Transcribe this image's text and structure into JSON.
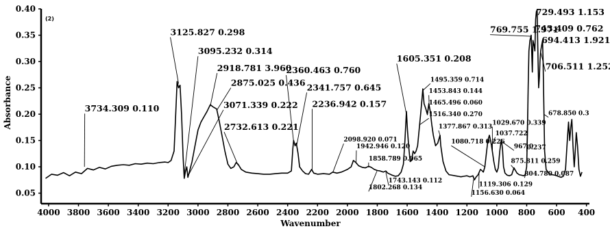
{
  "chart_data": {
    "type": "line",
    "panel_label": "(2)",
    "xlabel": "Wavenumber",
    "ylabel": "Absorbance",
    "xlim": [
      4050,
      380
    ],
    "ylim": [
      0.03,
      0.4
    ],
    "x_reversed": true,
    "xticks": [
      "4000",
      "3800",
      "3600",
      "3400",
      "3200",
      "3000",
      "2800",
      "2600",
      "2400",
      "2200",
      "2000",
      "1800",
      "1600",
      "1400",
      "1200",
      "1000",
      "800",
      "600",
      "400"
    ],
    "yticks": [
      "0.05",
      "0.10",
      "0.15",
      "0.20",
      "0.25",
      "0.30",
      "0.35",
      "0.40"
    ],
    "series": [
      {
        "color": "#000000",
        "points": [
          [
            4020,
            0.078
          ],
          [
            3980,
            0.086
          ],
          [
            3940,
            0.084
          ],
          [
            3900,
            0.089
          ],
          [
            3860,
            0.083
          ],
          [
            3820,
            0.09
          ],
          [
            3780,
            0.087
          ],
          [
            3740,
            0.097
          ],
          [
            3700,
            0.094
          ],
          [
            3660,
            0.099
          ],
          [
            3620,
            0.096
          ],
          [
            3580,
            0.101
          ],
          [
            3540,
            0.103
          ],
          [
            3500,
            0.104
          ],
          [
            3460,
            0.103
          ],
          [
            3420,
            0.106
          ],
          [
            3380,
            0.105
          ],
          [
            3340,
            0.107
          ],
          [
            3300,
            0.106
          ],
          [
            3260,
            0.108
          ],
          [
            3220,
            0.109
          ],
          [
            3200,
            0.108
          ],
          [
            3180,
            0.112
          ],
          [
            3160,
            0.13
          ],
          [
            3150,
            0.195
          ],
          [
            3140,
            0.262
          ],
          [
            3130,
            0.25
          ],
          [
            3120,
            0.255
          ],
          [
            3110,
            0.2
          ],
          [
            3100,
            0.12
          ],
          [
            3092,
            0.078
          ],
          [
            3085,
            0.09
          ],
          [
            3075,
            0.1
          ],
          [
            3068,
            0.08
          ],
          [
            3060,
            0.088
          ],
          [
            3040,
            0.11
          ],
          [
            3020,
            0.14
          ],
          [
            3000,
            0.17
          ],
          [
            2980,
            0.185
          ],
          [
            2960,
            0.195
          ],
          [
            2940,
            0.205
          ],
          [
            2918,
            0.218
          ],
          [
            2900,
            0.214
          ],
          [
            2875,
            0.21
          ],
          [
            2860,
            0.19
          ],
          [
            2840,
            0.16
          ],
          [
            2820,
            0.13
          ],
          [
            2800,
            0.105
          ],
          [
            2780,
            0.097
          ],
          [
            2760,
            0.1
          ],
          [
            2745,
            0.108
          ],
          [
            2732,
            0.105
          ],
          [
            2710,
            0.095
          ],
          [
            2680,
            0.09
          ],
          [
            2640,
            0.088
          ],
          [
            2600,
            0.087
          ],
          [
            2560,
            0.086
          ],
          [
            2520,
            0.086
          ],
          [
            2480,
            0.087
          ],
          [
            2440,
            0.088
          ],
          [
            2400,
            0.088
          ],
          [
            2375,
            0.092
          ],
          [
            2365,
            0.135
          ],
          [
            2360,
            0.15
          ],
          [
            2350,
            0.14
          ],
          [
            2342,
            0.145
          ],
          [
            2330,
            0.125
          ],
          [
            2320,
            0.1
          ],
          [
            2300,
            0.092
          ],
          [
            2280,
            0.087
          ],
          [
            2260,
            0.086
          ],
          [
            2240,
            0.095
          ],
          [
            2225,
            0.088
          ],
          [
            2200,
            0.086
          ],
          [
            2160,
            0.087
          ],
          [
            2120,
            0.086
          ],
          [
            2098,
            0.09
          ],
          [
            2070,
            0.088
          ],
          [
            2040,
            0.09
          ],
          [
            2000,
            0.095
          ],
          [
            1975,
            0.1
          ],
          [
            1960,
            0.112
          ],
          [
            1943,
            0.108
          ],
          [
            1925,
            0.102
          ],
          [
            1900,
            0.099
          ],
          [
            1880,
            0.098
          ],
          [
            1858,
            0.101
          ],
          [
            1840,
            0.099
          ],
          [
            1820,
            0.095
          ],
          [
            1800,
            0.093
          ],
          [
            1780,
            0.092
          ],
          [
            1760,
            0.09
          ],
          [
            1743,
            0.092
          ],
          [
            1730,
            0.088
          ],
          [
            1700,
            0.084
          ],
          [
            1680,
            0.082
          ],
          [
            1660,
            0.083
          ],
          [
            1640,
            0.09
          ],
          [
            1625,
            0.105
          ],
          [
            1615,
            0.15
          ],
          [
            1605,
            0.205
          ],
          [
            1598,
            0.17
          ],
          [
            1590,
            0.14
          ],
          [
            1580,
            0.11
          ],
          [
            1570,
            0.112
          ],
          [
            1560,
            0.13
          ],
          [
            1550,
            0.125
          ],
          [
            1540,
            0.13
          ],
          [
            1530,
            0.14
          ],
          [
            1520,
            0.17
          ],
          [
            1510,
            0.2
          ],
          [
            1500,
            0.232
          ],
          [
            1495,
            0.248
          ],
          [
            1487,
            0.22
          ],
          [
            1475,
            0.21
          ],
          [
            1465,
            0.2
          ],
          [
            1455,
            0.22
          ],
          [
            1445,
            0.205
          ],
          [
            1435,
            0.18
          ],
          [
            1425,
            0.16
          ],
          [
            1410,
            0.14
          ],
          [
            1395,
            0.145
          ],
          [
            1380,
            0.16
          ],
          [
            1375,
            0.14
          ],
          [
            1360,
            0.11
          ],
          [
            1340,
            0.092
          ],
          [
            1320,
            0.085
          ],
          [
            1300,
            0.084
          ],
          [
            1280,
            0.083
          ],
          [
            1260,
            0.082
          ],
          [
            1240,
            0.081
          ],
          [
            1220,
            0.082
          ],
          [
            1200,
            0.083
          ],
          [
            1180,
            0.081
          ],
          [
            1160,
            0.083
          ],
          [
            1150,
            0.075
          ],
          [
            1140,
            0.08
          ],
          [
            1125,
            0.085
          ],
          [
            1110,
            0.095
          ],
          [
            1100,
            0.093
          ],
          [
            1090,
            0.09
          ],
          [
            1080,
            0.1
          ],
          [
            1070,
            0.125
          ],
          [
            1060,
            0.15
          ],
          [
            1050,
            0.16
          ],
          [
            1040,
            0.148
          ],
          [
            1030,
            0.13
          ],
          [
            1020,
            0.11
          ],
          [
            1010,
            0.095
          ],
          [
            1000,
            0.09
          ],
          [
            990,
            0.098
          ],
          [
            980,
            0.13
          ],
          [
            970,
            0.152
          ],
          [
            962,
            0.135
          ],
          [
            955,
            0.1
          ],
          [
            945,
            0.088
          ],
          [
            930,
            0.084
          ],
          [
            915,
            0.083
          ],
          [
            900,
            0.085
          ],
          [
            885,
            0.098
          ],
          [
            875,
            0.093
          ],
          [
            865,
            0.088
          ],
          [
            850,
            0.085
          ],
          [
            835,
            0.084
          ],
          [
            820,
            0.083
          ],
          [
            810,
            0.085
          ],
          [
            800,
            0.1
          ],
          [
            795,
            0.16
          ],
          [
            790,
            0.25
          ],
          [
            785,
            0.32
          ],
          [
            778,
            0.34
          ],
          [
            770,
            0.35
          ],
          [
            762,
            0.28
          ],
          [
            758,
            0.34
          ],
          [
            750,
            0.33
          ],
          [
            745,
            0.32
          ],
          [
            740,
            0.38
          ],
          [
            735,
            0.395
          ],
          [
            730,
            0.398
          ],
          [
            726,
            0.33
          ],
          [
            720,
            0.25
          ],
          [
            715,
            0.27
          ],
          [
            711,
            0.3
          ],
          [
            706,
            0.32
          ],
          [
            700,
            0.33
          ],
          [
            694,
            0.34
          ],
          [
            690,
            0.3
          ],
          [
            684,
            0.2
          ],
          [
            680,
            0.13
          ],
          [
            670,
            0.095
          ],
          [
            650,
            0.087
          ],
          [
            630,
            0.085
          ],
          [
            610,
            0.084
          ],
          [
            590,
            0.082
          ],
          [
            570,
            0.08
          ],
          [
            555,
            0.082
          ],
          [
            540,
            0.095
          ],
          [
            528,
            0.15
          ],
          [
            520,
            0.185
          ],
          [
            512,
            0.15
          ],
          [
            505,
            0.175
          ],
          [
            498,
            0.19
          ],
          [
            490,
            0.14
          ],
          [
            482,
            0.1
          ],
          [
            475,
            0.13
          ],
          [
            468,
            0.165
          ],
          [
            460,
            0.14
          ],
          [
            450,
            0.095
          ],
          [
            440,
            0.082
          ],
          [
            430,
            0.09
          ]
        ]
      }
    ],
    "annotations": [
      {
        "text": "3734.309  0.110",
        "size": "big",
        "x": 3760,
        "y": 0.1,
        "tx": 3758,
        "ty": 0.205
      },
      {
        "text": "3125.827  0.298",
        "size": "big",
        "x": 3130,
        "y": 0.258,
        "tx": 3185,
        "ty": 0.35
      },
      {
        "text": "3095.232  0.314",
        "size": "big",
        "x": 3094,
        "y": 0.08,
        "tx": 3000,
        "ty": 0.314
      },
      {
        "text": "2918.781  3.960",
        "size": "big",
        "x": 2918,
        "y": 0.215,
        "tx": 2872,
        "ty": 0.282
      },
      {
        "text": "2875.025  0.436",
        "size": "big",
        "x": 2875,
        "y": 0.207,
        "tx": 2780,
        "ty": 0.254
      },
      {
        "text": "3071.339  0.222",
        "size": "big",
        "x": 3068,
        "y": 0.082,
        "tx": 2830,
        "ty": 0.212
      },
      {
        "text": "2732.613  0.221",
        "size": "big",
        "x": 2732,
        "y": 0.103,
        "tx": 2825,
        "ty": 0.17
      },
      {
        "text": "2360.463  0.760",
        "size": "big",
        "x": 2360,
        "y": 0.148,
        "tx": 2410,
        "ty": 0.278
      },
      {
        "text": "2341.757  0.645",
        "size": "big",
        "x": 2340,
        "y": 0.14,
        "tx": 2272,
        "ty": 0.245
      },
      {
        "text": "2236.942  0.157",
        "size": "big",
        "x": 2236,
        "y": 0.093,
        "tx": 2236,
        "ty": 0.214
      },
      {
        "text": "2098.920  0.071",
        "size": "small",
        "x": 2098,
        "y": 0.089,
        "tx": 2025,
        "ty": 0.148
      },
      {
        "text": "1942.946  0.120",
        "size": "small",
        "x": 1942,
        "y": 0.106,
        "tx": 1940,
        "ty": 0.135
      },
      {
        "text": "1858.789  0.065",
        "size": "small",
        "x": 1858,
        "y": 0.099,
        "tx": 1858,
        "ty": 0.112
      },
      {
        "text": "1802.268  0.134",
        "size": "small",
        "x": 1802,
        "y": 0.092,
        "tx": 1858,
        "ty": 0.057
      },
      {
        "text": "1743.143  0.112",
        "size": "small",
        "x": 1743,
        "y": 0.09,
        "tx": 1725,
        "ty": 0.07
      },
      {
        "text": "1605.351  0.208",
        "size": "big",
        "x": 1605,
        "y": 0.2,
        "tx": 1670,
        "ty": 0.3
      },
      {
        "text": "1495.359  0.714",
        "size": "small",
        "x": 1495,
        "y": 0.245,
        "tx": 1445,
        "ty": 0.262
      },
      {
        "text": "1453.843  0.144",
        "size": "small",
        "x": 1453,
        "y": 0.218,
        "tx": 1455,
        "ty": 0.24
      },
      {
        "text": "1465.496  0.060",
        "size": "small",
        "x": 1465,
        "y": 0.198,
        "tx": 1455,
        "ty": 0.218
      },
      {
        "text": "1516.340  0.270",
        "size": "small",
        "x": 1516,
        "y": 0.18,
        "tx": 1455,
        "ty": 0.196
      },
      {
        "text": "1377.867  0.313",
        "size": "small",
        "x": 1378,
        "y": 0.158,
        "tx": 1390,
        "ty": 0.173
      },
      {
        "text": "1080.718  0.226",
        "size": "small",
        "x": 1080,
        "y": 0.1,
        "tx": 1305,
        "ty": 0.144
      },
      {
        "text": "1029.670  0.339",
        "size": "small",
        "x": 1029,
        "y": 0.13,
        "tx": 1030,
        "ty": 0.18
      },
      {
        "text": "1037.722",
        "size": "small",
        "x": 1037,
        "y": 0.14,
        "tx": 1010,
        "ty": 0.16
      },
      {
        "text": "967.0",
        "size": "small",
        "x": 967,
        "y": 0.148,
        "tx": 885,
        "ty": 0.135
      },
      {
        "text": "0.237",
        "size": "small",
        "x": 790,
        "y": 0.25,
        "tx": 800,
        "ty": 0.133
      },
      {
        "text": "875.811  0.259",
        "size": "small",
        "x": 875,
        "y": 0.093,
        "tx": 905,
        "ty": 0.107
      },
      {
        "text": "804.780  0.087",
        "size": "small",
        "x": 804,
        "y": 0.088,
        "tx": 815,
        "ty": 0.083
      },
      {
        "text": "1119.306  0.129",
        "size": "small",
        "x": 1119,
        "y": 0.09,
        "tx": 1120,
        "ty": 0.063
      },
      {
        "text": "1156.630  0.064",
        "size": "small",
        "x": 1156,
        "y": 0.076,
        "tx": 1170,
        "ty": 0.047
      },
      {
        "text": "769.755  1.971",
        "size": "big",
        "x": 770,
        "y": 0.348,
        "tx": 1045,
        "ty": 0.355
      },
      {
        "text": "729.493  1.153",
        "size": "big",
        "x": 730,
        "y": 0.396,
        "tx": 738,
        "ty": 0.388
      },
      {
        "text": "743.409  0.762",
        "size": "big",
        "x": 740,
        "y": 0.378,
        "tx": 745,
        "ty": 0.357
      },
      {
        "text": "694.413  1.921",
        "size": "big",
        "x": 694,
        "y": 0.338,
        "tx": 700,
        "ty": 0.335
      },
      {
        "text": "706.511  1.252",
        "size": "big",
        "x": 706,
        "y": 0.318,
        "tx": 675,
        "ty": 0.285
      },
      {
        "text": "678.850  0.3",
        "size": "small",
        "x": 686,
        "y": 0.2,
        "tx": 655,
        "ty": 0.198
      }
    ]
  }
}
